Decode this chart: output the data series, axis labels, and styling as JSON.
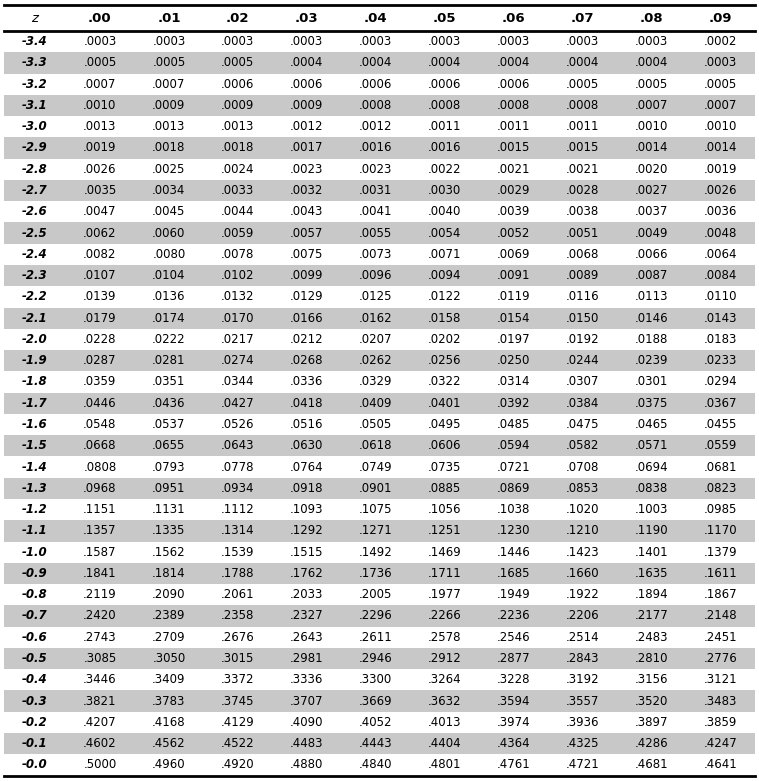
{
  "headers": [
    "z",
    ".00",
    ".01",
    ".02",
    ".03",
    ".04",
    ".05",
    ".06",
    ".07",
    ".08",
    ".09"
  ],
  "rows": [
    [
      "-3.4",
      ".0003",
      ".0003",
      ".0003",
      ".0003",
      ".0003",
      ".0003",
      ".0003",
      ".0003",
      ".0003",
      ".0002"
    ],
    [
      "-3.3",
      ".0005",
      ".0005",
      ".0005",
      ".0004",
      ".0004",
      ".0004",
      ".0004",
      ".0004",
      ".0004",
      ".0003"
    ],
    [
      "-3.2",
      ".0007",
      ".0007",
      ".0006",
      ".0006",
      ".0006",
      ".0006",
      ".0006",
      ".0005",
      ".0005",
      ".0005"
    ],
    [
      "-3.1",
      ".0010",
      ".0009",
      ".0009",
      ".0009",
      ".0008",
      ".0008",
      ".0008",
      ".0008",
      ".0007",
      ".0007"
    ],
    [
      "-3.0",
      ".0013",
      ".0013",
      ".0013",
      ".0012",
      ".0012",
      ".0011",
      ".0011",
      ".0011",
      ".0010",
      ".0010"
    ],
    [
      "-2.9",
      ".0019",
      ".0018",
      ".0018",
      ".0017",
      ".0016",
      ".0016",
      ".0015",
      ".0015",
      ".0014",
      ".0014"
    ],
    [
      "-2.8",
      ".0026",
      ".0025",
      ".0024",
      ".0023",
      ".0023",
      ".0022",
      ".0021",
      ".0021",
      ".0020",
      ".0019"
    ],
    [
      "-2.7",
      ".0035",
      ".0034",
      ".0033",
      ".0032",
      ".0031",
      ".0030",
      ".0029",
      ".0028",
      ".0027",
      ".0026"
    ],
    [
      "-2.6",
      ".0047",
      ".0045",
      ".0044",
      ".0043",
      ".0041",
      ".0040",
      ".0039",
      ".0038",
      ".0037",
      ".0036"
    ],
    [
      "-2.5",
      ".0062",
      ".0060",
      ".0059",
      ".0057",
      ".0055",
      ".0054",
      ".0052",
      ".0051",
      ".0049",
      ".0048"
    ],
    [
      "-2.4",
      ".0082",
      ".0080",
      ".0078",
      ".0075",
      ".0073",
      ".0071",
      ".0069",
      ".0068",
      ".0066",
      ".0064"
    ],
    [
      "-2.3",
      ".0107",
      ".0104",
      ".0102",
      ".0099",
      ".0096",
      ".0094",
      ".0091",
      ".0089",
      ".0087",
      ".0084"
    ],
    [
      "-2.2",
      ".0139",
      ".0136",
      ".0132",
      ".0129",
      ".0125",
      ".0122",
      ".0119",
      ".0116",
      ".0113",
      ".0110"
    ],
    [
      "-2.1",
      ".0179",
      ".0174",
      ".0170",
      ".0166",
      ".0162",
      ".0158",
      ".0154",
      ".0150",
      ".0146",
      ".0143"
    ],
    [
      "-2.0",
      ".0228",
      ".0222",
      ".0217",
      ".0212",
      ".0207",
      ".0202",
      ".0197",
      ".0192",
      ".0188",
      ".0183"
    ],
    [
      "-1.9",
      ".0287",
      ".0281",
      ".0274",
      ".0268",
      ".0262",
      ".0256",
      ".0250",
      ".0244",
      ".0239",
      ".0233"
    ],
    [
      "-1.8",
      ".0359",
      ".0351",
      ".0344",
      ".0336",
      ".0329",
      ".0322",
      ".0314",
      ".0307",
      ".0301",
      ".0294"
    ],
    [
      "-1.7",
      ".0446",
      ".0436",
      ".0427",
      ".0418",
      ".0409",
      ".0401",
      ".0392",
      ".0384",
      ".0375",
      ".0367"
    ],
    [
      "-1.6",
      ".0548",
      ".0537",
      ".0526",
      ".0516",
      ".0505",
      ".0495",
      ".0485",
      ".0475",
      ".0465",
      ".0455"
    ],
    [
      "-1.5",
      ".0668",
      ".0655",
      ".0643",
      ".0630",
      ".0618",
      ".0606",
      ".0594",
      ".0582",
      ".0571",
      ".0559"
    ],
    [
      "-1.4",
      ".0808",
      ".0793",
      ".0778",
      ".0764",
      ".0749",
      ".0735",
      ".0721",
      ".0708",
      ".0694",
      ".0681"
    ],
    [
      "-1.3",
      ".0968",
      ".0951",
      ".0934",
      ".0918",
      ".0901",
      ".0885",
      ".0869",
      ".0853",
      ".0838",
      ".0823"
    ],
    [
      "-1.2",
      ".1151",
      ".1131",
      ".1112",
      ".1093",
      ".1075",
      ".1056",
      ".1038",
      ".1020",
      ".1003",
      ".0985"
    ],
    [
      "-1.1",
      ".1357",
      ".1335",
      ".1314",
      ".1292",
      ".1271",
      ".1251",
      ".1230",
      ".1210",
      ".1190",
      ".1170"
    ],
    [
      "-1.0",
      ".1587",
      ".1562",
      ".1539",
      ".1515",
      ".1492",
      ".1469",
      ".1446",
      ".1423",
      ".1401",
      ".1379"
    ],
    [
      "-0.9",
      ".1841",
      ".1814",
      ".1788",
      ".1762",
      ".1736",
      ".1711",
      ".1685",
      ".1660",
      ".1635",
      ".1611"
    ],
    [
      "-0.8",
      ".2119",
      ".2090",
      ".2061",
      ".2033",
      ".2005",
      ".1977",
      ".1949",
      ".1922",
      ".1894",
      ".1867"
    ],
    [
      "-0.7",
      ".2420",
      ".2389",
      ".2358",
      ".2327",
      ".2296",
      ".2266",
      ".2236",
      ".2206",
      ".2177",
      ".2148"
    ],
    [
      "-0.6",
      ".2743",
      ".2709",
      ".2676",
      ".2643",
      ".2611",
      ".2578",
      ".2546",
      ".2514",
      ".2483",
      ".2451"
    ],
    [
      "-0.5",
      ".3085",
      ".3050",
      ".3015",
      ".2981",
      ".2946",
      ".2912",
      ".2877",
      ".2843",
      ".2810",
      ".2776"
    ],
    [
      "-0.4",
      ".3446",
      ".3409",
      ".3372",
      ".3336",
      ".3300",
      ".3264",
      ".3228",
      ".3192",
      ".3156",
      ".3121"
    ],
    [
      "-0.3",
      ".3821",
      ".3783",
      ".3745",
      ".3707",
      ".3669",
      ".3632",
      ".3594",
      ".3557",
      ".3520",
      ".3483"
    ],
    [
      "-0.2",
      ".4207",
      ".4168",
      ".4129",
      ".4090",
      ".4052",
      ".4013",
      ".3974",
      ".3936",
      ".3897",
      ".3859"
    ],
    [
      "-0.1",
      ".4602",
      ".4562",
      ".4522",
      ".4483",
      ".4443",
      ".4404",
      ".4364",
      ".4325",
      ".4286",
      ".4247"
    ],
    [
      "-0.0",
      ".5000",
      ".4960",
      ".4920",
      ".4880",
      ".4840",
      ".4801",
      ".4761",
      ".4721",
      ".4681",
      ".4641"
    ]
  ],
  "shaded_rows": [
    1,
    3,
    5,
    7,
    9,
    11,
    13,
    15,
    17,
    19,
    21,
    23,
    25,
    27,
    29,
    31,
    33
  ],
  "shade_color": "#c8c8c8",
  "bg_color": "#ffffff",
  "text_color": "#000000",
  "font_size": 8.5,
  "header_font_size": 9.5,
  "fig_width": 7.59,
  "fig_height": 7.81,
  "dpi": 100
}
